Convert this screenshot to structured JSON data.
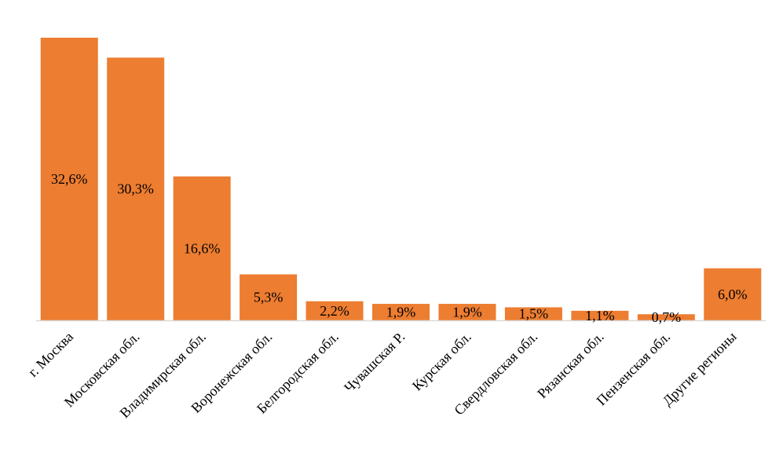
{
  "chart_data": {
    "type": "bar",
    "categories": [
      "г. Москва",
      "Московская обл.",
      "Владимирская обл.",
      "Воронежская обл.",
      "Белгородская обл.",
      "Чувашская Р.",
      "Курская обл.",
      "Свердловская обл.",
      "Рязанская обл.",
      "Пензенская обл.",
      "Другие регионы"
    ],
    "values": [
      32.6,
      30.3,
      16.6,
      5.3,
      2.2,
      1.9,
      1.9,
      1.5,
      1.1,
      0.7,
      6.0
    ],
    "data_labels": [
      "32,6%",
      "30,3%",
      "16,6%",
      "5,3%",
      "2,2%",
      "1,9%",
      "1,9%",
      "1,5%",
      "1,1%",
      "0,7%",
      "6,0%"
    ],
    "title": "",
    "xlabel": "",
    "ylabel": "",
    "ylim": [
      0,
      32.6
    ],
    "grid": false,
    "legend": "none",
    "colors": {
      "bar": "#ED7D31",
      "axis": "#D9D9D9",
      "text": "#000000"
    }
  }
}
